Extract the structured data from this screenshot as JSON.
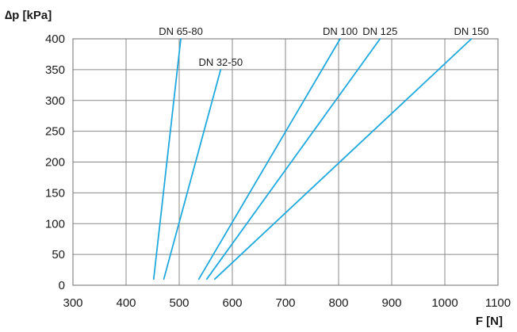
{
  "chart_data": {
    "type": "line",
    "title": "",
    "xlabel": "F [N]",
    "ylabel": "∆p [kPa]",
    "xlim": [
      300,
      1100
    ],
    "ylim": [
      0,
      400
    ],
    "x_ticks": [
      300,
      400,
      500,
      600,
      700,
      800,
      900,
      1000,
      1100
    ],
    "y_ticks": [
      0,
      50,
      100,
      150,
      200,
      250,
      300,
      350,
      400
    ],
    "grid": true,
    "line_color": "#1fa9de",
    "series": [
      {
        "name": "DN 65-80",
        "x": [
          452,
          503
        ],
        "y": [
          10,
          400
        ]
      },
      {
        "name": "DN 32-50",
        "x": [
          471,
          578
        ],
        "y": [
          10,
          350
        ]
      },
      {
        "name": "DN 100",
        "x": [
          537,
          803
        ],
        "y": [
          10,
          400
        ]
      },
      {
        "name": "DN 125",
        "x": [
          552,
          878
        ],
        "y": [
          10,
          400
        ]
      },
      {
        "name": "DN 150",
        "x": [
          567,
          1050
        ],
        "y": [
          10,
          400
        ]
      }
    ]
  }
}
